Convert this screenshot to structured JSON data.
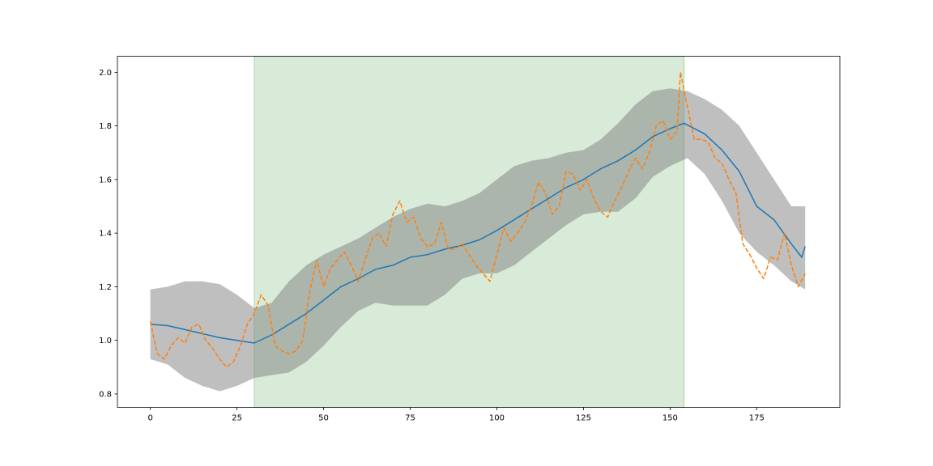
{
  "chart_data": {
    "type": "line",
    "title": "",
    "xlabel": "",
    "ylabel": "",
    "xlim": [
      -9.5,
      199
    ],
    "ylim": [
      0.75,
      2.06
    ],
    "grid": false,
    "x_ticks": [
      0,
      25,
      50,
      75,
      100,
      125,
      150,
      175
    ],
    "x_tick_labels": [
      "0",
      "25",
      "50",
      "75",
      "100",
      "125",
      "150",
      "175"
    ],
    "y_ticks": [
      0.8,
      1.0,
      1.2,
      1.4,
      1.6,
      1.8,
      2.0
    ],
    "y_tick_labels": [
      "0.8",
      "1.0",
      "1.2",
      "1.4",
      "1.6",
      "1.8",
      "2.0"
    ],
    "highlight_span": {
      "x_start": 30,
      "x_end": 154,
      "color": "#d8ebd8",
      "edge_color": "#a8d4a8"
    },
    "band": {
      "color": "#7f7f7f",
      "opacity": 0.5,
      "points": [
        {
          "x": 0,
          "lower": 0.93,
          "upper": 1.19
        },
        {
          "x": 5,
          "lower": 0.91,
          "upper": 1.2
        },
        {
          "x": 10,
          "lower": 0.86,
          "upper": 1.22
        },
        {
          "x": 15,
          "lower": 0.83,
          "upper": 1.22
        },
        {
          "x": 20,
          "lower": 0.81,
          "upper": 1.21
        },
        {
          "x": 25,
          "lower": 0.83,
          "upper": 1.17
        },
        {
          "x": 30,
          "lower": 0.86,
          "upper": 1.12
        },
        {
          "x": 35,
          "lower": 0.87,
          "upper": 1.14
        },
        {
          "x": 40,
          "lower": 0.88,
          "upper": 1.22
        },
        {
          "x": 45,
          "lower": 0.92,
          "upper": 1.28
        },
        {
          "x": 50,
          "lower": 0.98,
          "upper": 1.32
        },
        {
          "x": 55,
          "lower": 1.05,
          "upper": 1.35
        },
        {
          "x": 60,
          "lower": 1.11,
          "upper": 1.38
        },
        {
          "x": 65,
          "lower": 1.14,
          "upper": 1.42
        },
        {
          "x": 70,
          "lower": 1.13,
          "upper": 1.46
        },
        {
          "x": 75,
          "lower": 1.13,
          "upper": 1.49
        },
        {
          "x": 80,
          "lower": 1.13,
          "upper": 1.51
        },
        {
          "x": 85,
          "lower": 1.17,
          "upper": 1.5
        },
        {
          "x": 90,
          "lower": 1.23,
          "upper": 1.52
        },
        {
          "x": 95,
          "lower": 1.25,
          "upper": 1.55
        },
        {
          "x": 100,
          "lower": 1.25,
          "upper": 1.6
        },
        {
          "x": 105,
          "lower": 1.28,
          "upper": 1.65
        },
        {
          "x": 110,
          "lower": 1.33,
          "upper": 1.67
        },
        {
          "x": 115,
          "lower": 1.38,
          "upper": 1.68
        },
        {
          "x": 120,
          "lower": 1.43,
          "upper": 1.7
        },
        {
          "x": 125,
          "lower": 1.47,
          "upper": 1.71
        },
        {
          "x": 130,
          "lower": 1.48,
          "upper": 1.75
        },
        {
          "x": 135,
          "lower": 1.48,
          "upper": 1.81
        },
        {
          "x": 140,
          "lower": 1.53,
          "upper": 1.88
        },
        {
          "x": 145,
          "lower": 1.61,
          "upper": 1.93
        },
        {
          "x": 150,
          "lower": 1.65,
          "upper": 1.94
        },
        {
          "x": 155,
          "lower": 1.68,
          "upper": 1.93
        },
        {
          "x": 160,
          "lower": 1.62,
          "upper": 1.9
        },
        {
          "x": 165,
          "lower": 1.52,
          "upper": 1.86
        },
        {
          "x": 170,
          "lower": 1.4,
          "upper": 1.8
        },
        {
          "x": 175,
          "lower": 1.33,
          "upper": 1.7
        },
        {
          "x": 180,
          "lower": 1.28,
          "upper": 1.6
        },
        {
          "x": 185,
          "lower": 1.22,
          "upper": 1.5
        },
        {
          "x": 189,
          "lower": 1.19,
          "upper": 1.5
        }
      ]
    },
    "series": [
      {
        "color": "#1f77b4",
        "style": "solid",
        "points": [
          [
            0,
            1.06
          ],
          [
            5,
            1.055
          ],
          [
            10,
            1.04
          ],
          [
            15,
            1.025
          ],
          [
            20,
            1.01
          ],
          [
            25,
            1.0
          ],
          [
            30,
            0.99
          ],
          [
            35,
            1.02
          ],
          [
            40,
            1.06
          ],
          [
            45,
            1.1
          ],
          [
            50,
            1.15
          ],
          [
            55,
            1.2
          ],
          [
            60,
            1.23
          ],
          [
            65,
            1.265
          ],
          [
            70,
            1.28
          ],
          [
            75,
            1.31
          ],
          [
            80,
            1.32
          ],
          [
            85,
            1.34
          ],
          [
            90,
            1.355
          ],
          [
            95,
            1.375
          ],
          [
            100,
            1.41
          ],
          [
            105,
            1.45
          ],
          [
            110,
            1.49
          ],
          [
            115,
            1.53
          ],
          [
            120,
            1.57
          ],
          [
            125,
            1.6
          ],
          [
            130,
            1.64
          ],
          [
            135,
            1.67
          ],
          [
            140,
            1.71
          ],
          [
            145,
            1.76
          ],
          [
            150,
            1.79
          ],
          [
            154,
            1.81
          ],
          [
            160,
            1.77
          ],
          [
            165,
            1.71
          ],
          [
            170,
            1.63
          ],
          [
            175,
            1.5
          ],
          [
            180,
            1.45
          ],
          [
            185,
            1.36
          ],
          [
            188,
            1.31
          ],
          [
            189,
            1.35
          ]
        ]
      },
      {
        "color": "#ff7f0e",
        "style": "dashed",
        "points": [
          [
            0,
            1.07
          ],
          [
            2,
            0.95
          ],
          [
            4,
            0.93
          ],
          [
            6,
            0.98
          ],
          [
            8,
            1.01
          ],
          [
            10,
            0.99
          ],
          [
            12,
            1.05
          ],
          [
            14,
            1.06
          ],
          [
            16,
            1.0
          ],
          [
            18,
            0.97
          ],
          [
            20,
            0.93
          ],
          [
            22,
            0.9
          ],
          [
            24,
            0.92
          ],
          [
            26,
            0.98
          ],
          [
            28,
            1.06
          ],
          [
            30,
            1.1
          ],
          [
            32,
            1.17
          ],
          [
            34,
            1.13
          ],
          [
            36,
            0.98
          ],
          [
            38,
            0.96
          ],
          [
            40,
            0.95
          ],
          [
            42,
            0.96
          ],
          [
            44,
            1.0
          ],
          [
            46,
            1.18
          ],
          [
            48,
            1.3
          ],
          [
            50,
            1.2
          ],
          [
            52,
            1.27
          ],
          [
            54,
            1.3
          ],
          [
            56,
            1.33
          ],
          [
            58,
            1.28
          ],
          [
            60,
            1.22
          ],
          [
            62,
            1.3
          ],
          [
            64,
            1.38
          ],
          [
            66,
            1.4
          ],
          [
            68,
            1.35
          ],
          [
            70,
            1.47
          ],
          [
            72,
            1.52
          ],
          [
            74,
            1.44
          ],
          [
            76,
            1.46
          ],
          [
            78,
            1.38
          ],
          [
            80,
            1.35
          ],
          [
            82,
            1.36
          ],
          [
            84,
            1.44
          ],
          [
            86,
            1.34
          ],
          [
            88,
            1.34
          ],
          [
            90,
            1.36
          ],
          [
            92,
            1.32
          ],
          [
            94,
            1.28
          ],
          [
            96,
            1.25
          ],
          [
            98,
            1.22
          ],
          [
            100,
            1.32
          ],
          [
            102,
            1.42
          ],
          [
            104,
            1.37
          ],
          [
            106,
            1.4
          ],
          [
            108,
            1.44
          ],
          [
            110,
            1.5
          ],
          [
            112,
            1.59
          ],
          [
            114,
            1.55
          ],
          [
            116,
            1.47
          ],
          [
            118,
            1.5
          ],
          [
            120,
            1.63
          ],
          [
            122,
            1.62
          ],
          [
            124,
            1.56
          ],
          [
            126,
            1.6
          ],
          [
            128,
            1.53
          ],
          [
            130,
            1.48
          ],
          [
            132,
            1.46
          ],
          [
            134,
            1.52
          ],
          [
            136,
            1.57
          ],
          [
            138,
            1.63
          ],
          [
            140,
            1.68
          ],
          [
            142,
            1.64
          ],
          [
            144,
            1.7
          ],
          [
            146,
            1.8
          ],
          [
            148,
            1.82
          ],
          [
            150,
            1.75
          ],
          [
            152,
            1.78
          ],
          [
            153,
            2.0
          ],
          [
            155,
            1.87
          ],
          [
            157,
            1.75
          ],
          [
            159,
            1.75
          ],
          [
            161,
            1.74
          ],
          [
            163,
            1.68
          ],
          [
            165,
            1.66
          ],
          [
            167,
            1.6
          ],
          [
            169,
            1.55
          ],
          [
            171,
            1.36
          ],
          [
            173,
            1.32
          ],
          [
            175,
            1.27
          ],
          [
            177,
            1.23
          ],
          [
            179,
            1.31
          ],
          [
            181,
            1.3
          ],
          [
            183,
            1.4
          ],
          [
            185,
            1.28
          ],
          [
            187,
            1.2
          ],
          [
            189,
            1.25
          ]
        ]
      }
    ]
  }
}
